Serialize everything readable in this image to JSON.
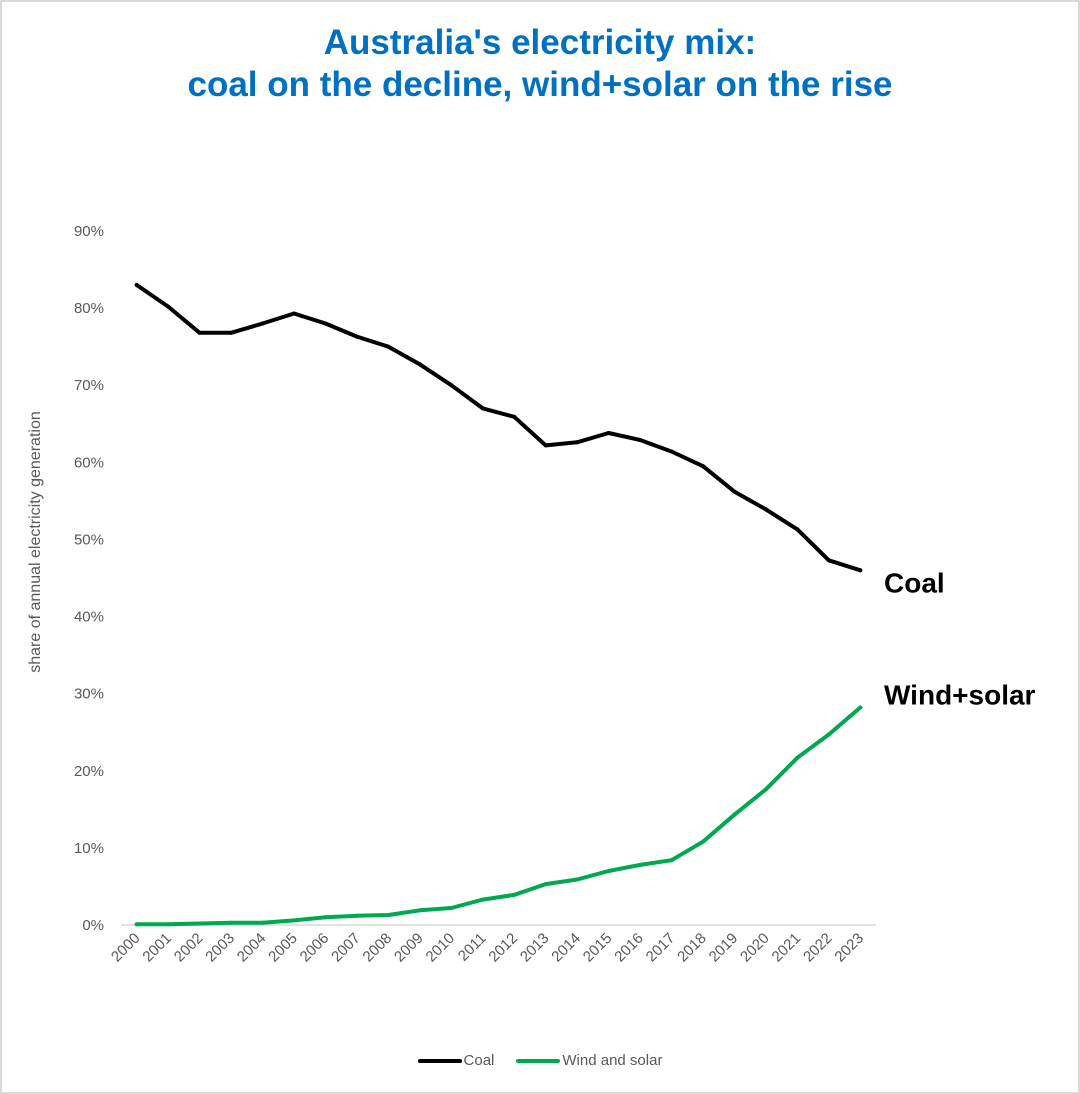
{
  "title": {
    "line1": "Australia's electricity mix:",
    "line2": "coal on the decline, wind+solar on the rise"
  },
  "colors": {
    "title": "#0070c0",
    "coal": "#000000",
    "wind_solar": "#00a84f",
    "axis_text": "#595959",
    "axis_line": "#d9d9d9",
    "border": "#d9d9d9"
  },
  "chart_data": {
    "type": "line",
    "title": "Australia's electricity mix: coal on the decline, wind+solar on the rise",
    "xlabel": "",
    "ylabel": "share of annual electricity generation",
    "x": [
      "2000",
      "2001",
      "2002",
      "2003",
      "2004",
      "2005",
      "2006",
      "2007",
      "2008",
      "2009",
      "2010",
      "2011",
      "2012",
      "2013",
      "2014",
      "2015",
      "2016",
      "2017",
      "2018",
      "2019",
      "2020",
      "2021",
      "2022",
      "2023"
    ],
    "ylim": [
      0,
      90
    ],
    "yticks": [
      "0%",
      "10%",
      "20%",
      "30%",
      "40%",
      "50%",
      "60%",
      "70%",
      "80%",
      "90%"
    ],
    "grid": false,
    "legend_position": "bottom",
    "series": [
      {
        "name": "Coal",
        "end_label": "Coal",
        "color": "#000000",
        "values": [
          83.0,
          80.2,
          76.8,
          76.8,
          78.0,
          79.3,
          78.0,
          76.3,
          75.0,
          72.7,
          70.0,
          67.0,
          65.9,
          62.2,
          62.6,
          63.8,
          62.9,
          61.4,
          59.5,
          56.2,
          53.9,
          51.3,
          47.3,
          46.0
        ]
      },
      {
        "name": "Wind and solar",
        "end_label": "Wind+solar",
        "color": "#00a84f",
        "values": [
          0.1,
          0.1,
          0.2,
          0.3,
          0.3,
          0.6,
          1.0,
          1.2,
          1.3,
          1.9,
          2.2,
          3.3,
          3.9,
          5.3,
          5.9,
          7.0,
          7.8,
          8.4,
          10.8,
          14.3,
          17.6,
          21.7,
          24.7,
          28.2
        ]
      }
    ]
  }
}
